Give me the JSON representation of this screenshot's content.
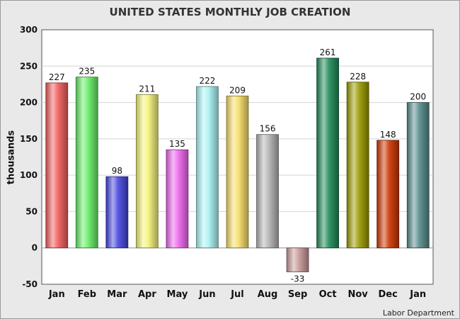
{
  "chart_data": {
    "type": "bar",
    "title": "UNITED STATES MONTHLY JOB CREATION",
    "ylabel": "thousands",
    "xlabel": "",
    "source": "Labor Department",
    "categories": [
      "Jan",
      "Feb",
      "Mar",
      "Apr",
      "May",
      "Jun",
      "Jul",
      "Aug",
      "Sep",
      "Oct",
      "Nov",
      "Dec",
      "Jan"
    ],
    "values": [
      227,
      235,
      98,
      211,
      135,
      222,
      209,
      156,
      -33,
      261,
      228,
      148,
      200
    ],
    "colors": [
      "#f25c5c",
      "#66ee66",
      "#4444dd",
      "#f3f377",
      "#ee66ee",
      "#aaf4f4",
      "#f6dd66",
      "#b3b3b3",
      "#c89898",
      "#1e8a57",
      "#999900",
      "#cc3300",
      "#558b8b"
    ],
    "ylim": [
      -50,
      300
    ],
    "yticks": [
      -50,
      0,
      50,
      100,
      150,
      200,
      250,
      300
    ],
    "grid": true,
    "legend": "none"
  }
}
